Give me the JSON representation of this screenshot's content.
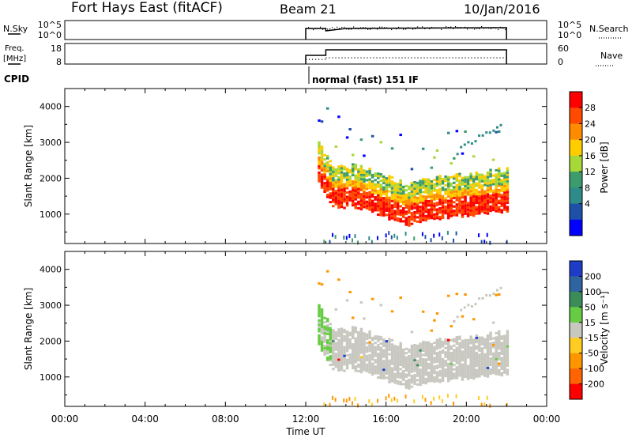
{
  "header": {
    "station": "Fort Hays East (fitACF)",
    "beam": "Beam 21",
    "date": "10/Jan/2016"
  },
  "panels": {
    "nsky": {
      "label": "N.Sky",
      "ytick_top": "10^5",
      "ytick_bottom": "10^0",
      "right_label": "N.Search",
      "right_tick_top": "10^5",
      "right_tick_bottom": "10^0"
    },
    "freq": {
      "label_top": "Freq.",
      "label_bottom": "[MHz]",
      "ytick_top": "18",
      "ytick_bottom": "8",
      "right_label": "Nave",
      "right_tick_top": "60",
      "right_tick_bottom": "0"
    },
    "cpid": {
      "label": "CPID",
      "text": "normal (fast) 151 IF"
    }
  },
  "colorbars": {
    "power": {
      "label": "Power [dB]",
      "ticks": [
        "28",
        "24",
        "20",
        "16",
        "12",
        "8",
        "4"
      ],
      "colors": [
        "#ff0000",
        "#ff4a00",
        "#ff8c00",
        "#ffcc00",
        "#a8d838",
        "#3c9c6c",
        "#2e8c88",
        "#1e50a8",
        "#0000ff"
      ]
    },
    "velocity": {
      "label": "Velocity [m s⁻¹]",
      "ticks": [
        "200",
        "100",
        "50",
        "15",
        "-15",
        "-50",
        "-100",
        "-200"
      ],
      "colors": [
        "#1e3cc8",
        "#2e64a0",
        "#3c8c5a",
        "#66cc44",
        "#c8c8c0",
        "#ffcc22",
        "#ff9600",
        "#ff6400",
        "#ff0000"
      ]
    }
  },
  "chart_data": [
    {
      "type": "heatmap",
      "title": "Power",
      "ylabel": "Slant Range [km]",
      "ylim": [
        180,
        4500
      ],
      "yticks": [
        "4000",
        "3000",
        "2000",
        "1000"
      ],
      "xlim": [
        "00:00",
        "24:00"
      ],
      "data_start": "12:00",
      "data_end": "22:00",
      "main_band_range_km": [
        1000,
        2200
      ],
      "colorscale": "Power [dB] 0–30"
    },
    {
      "type": "heatmap",
      "title": "Velocity",
      "ylabel": "Slant Range [km]",
      "ylim": [
        180,
        4500
      ],
      "yticks": [
        "4000",
        "3000",
        "2000",
        "1000"
      ],
      "xlim": [
        "00:00",
        "24:00"
      ],
      "data_start": "12:00",
      "data_end": "22:00",
      "colorscale": "Velocity [m s⁻¹] -200–200"
    }
  ],
  "xaxis": {
    "ticks": [
      "00:00",
      "04:00",
      "08:00",
      "12:00",
      "16:00",
      "20:00",
      "00:00"
    ],
    "label": "Time UT"
  }
}
